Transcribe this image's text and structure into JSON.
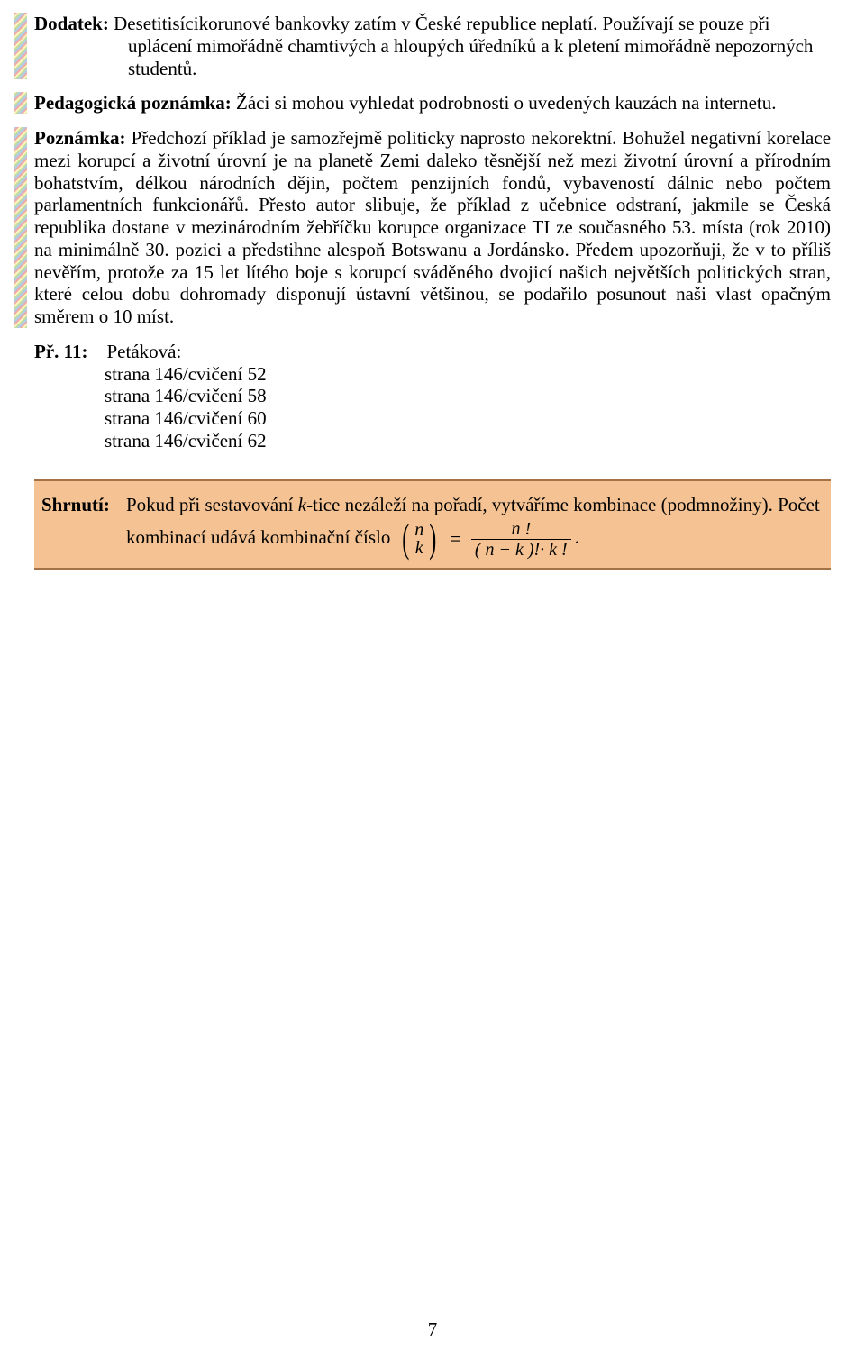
{
  "dodatek": {
    "label": "Dodatek:",
    "text": "Desetitisícikorunové bankovky zatím v České republice neplatí. Používají se pouze při uplácení mimořádně chamtivých a hloupých úředníků a k pletení mimořádně nepozorných studentů."
  },
  "pedpozn": {
    "label": "Pedagogická poznámka:",
    "text": "Žáci si mohou vyhledat podrobnosti o uvedených kauzách na internetu."
  },
  "poznamka": {
    "label": "Poznámka:",
    "lead": "Předchozí příklad je samozřejmě politicky naprosto nekorektní. Bohužel",
    "rest": "negativní korelace mezi korupcí a životní úrovní je na planetě Zemi daleko těsnější než mezi životní úrovní a přírodním bohatstvím, délkou národních dějin, počtem penzijních fondů, vybaveností dálnic nebo počtem parlamentních funkcionářů. Přesto autor slibuje, že příklad z učebnice odstraní, jakmile se Česká republika dostane v mezinárodním žebříčku korupce organizace TI ze současného 53. místa (rok 2010) na minimálně 30. pozici a předstihne alespoň Botswanu a Jordánsko. Předem upozorňuji, že v to příliš nevěřím, protože za 15 let lítého boje s korupcí sváděného dvojicí našich největších politických stran, které celou dobu dohromady disponují ústavní většinou, se podařilo posunout naši vlast opačným směrem o 10 míst."
  },
  "pr11": {
    "label": "Př. 11:",
    "head": "Petáková:",
    "lines": [
      "strana 146/cvičení 52",
      "strana 146/cvičení 58",
      "strana 146/cvičení 60",
      "strana 146/cvičení 62"
    ]
  },
  "shrnuti": {
    "label": "Shrnutí:",
    "text1": "Pokud při sestavování ",
    "kt": "k",
    "text1b": "-tice nezáleží na pořadí, vytváříme kombinace (podmnožiny). Počet kombinací udává kombinační číslo",
    "binom_top": "n",
    "binom_bot": "k",
    "frac_num": "n !",
    "frac_den": "( n − k )!· k !",
    "period": "."
  },
  "page_number": "7",
  "colors": {
    "summary_bg": "#f5c393",
    "summary_border": "#a37246"
  }
}
